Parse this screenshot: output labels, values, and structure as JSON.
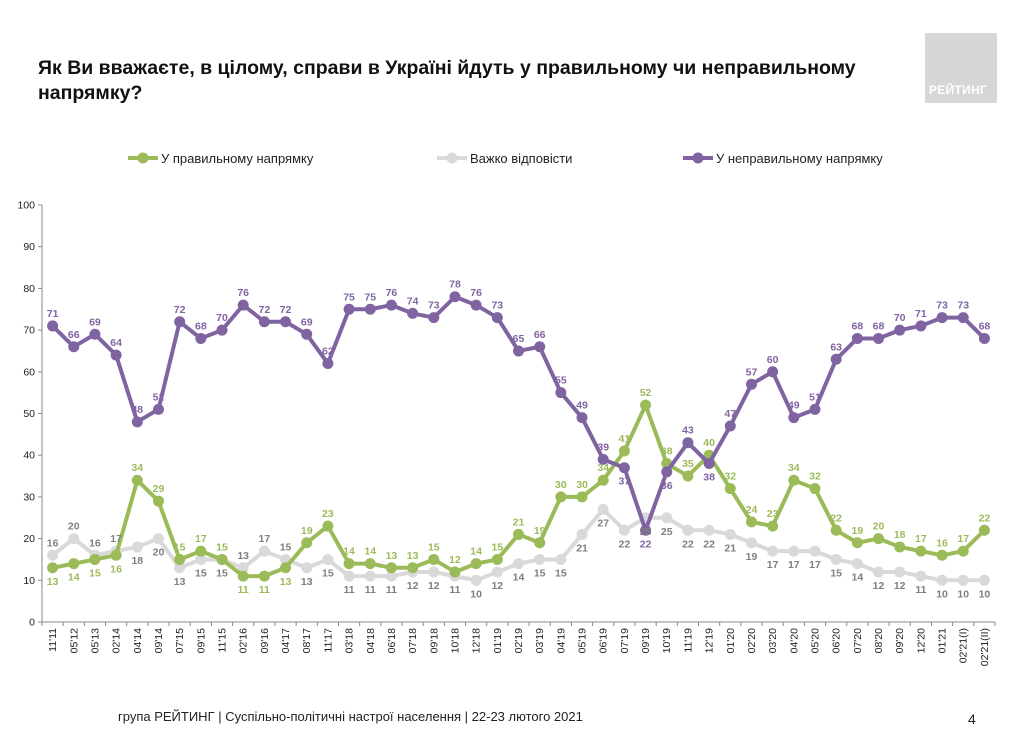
{
  "title": "Як Ви вважаєте, в цілому, справи в Україні йдуть у правильному чи неправильному напрямку?",
  "logo_text": "РЕЙТИНГ",
  "footer": "група РЕЙТИНГ | Суспільно-політичні настрої населення  | 22-23 лютого 2021",
  "page_number": "4",
  "chart_data": {
    "type": "line",
    "ylim": [
      0,
      100
    ],
    "yticks": [
      0,
      10,
      20,
      30,
      40,
      50,
      60,
      70,
      80,
      90,
      100
    ],
    "legend_position": "top",
    "grid": false,
    "categories": [
      "11'11",
      "05'12",
      "05'13",
      "02'14",
      "04'14",
      "09'14",
      "07'15",
      "09'15",
      "11'15",
      "02'16",
      "09'16",
      "04'17",
      "08'17",
      "11'17",
      "03'18",
      "04'18",
      "06'18",
      "07'18",
      "09'18",
      "10'18",
      "12'18",
      "01'19",
      "02'19",
      "03'19",
      "04'19",
      "05'19",
      "06'19",
      "07'19",
      "09'19",
      "10'19",
      "11'19",
      "12'19",
      "01'20",
      "02'20",
      "03'20",
      "04'20",
      "05'20",
      "06'20",
      "07'20",
      "08'20",
      "09'20",
      "12'20",
      "01'21",
      "02'21(I)",
      "02'21(II)"
    ],
    "series": [
      {
        "name": "У правильному напрямку",
        "color": "#9bbb59",
        "values": [
          13,
          14,
          15,
          16,
          34,
          29,
          15,
          17,
          15,
          11,
          11,
          13,
          19,
          23,
          14,
          14,
          13,
          13,
          15,
          12,
          14,
          15,
          21,
          19,
          30,
          30,
          34,
          41,
          52,
          38,
          35,
          40,
          32,
          24,
          23,
          34,
          32,
          22,
          19,
          20,
          18,
          17,
          16,
          17,
          22
        ]
      },
      {
        "name": "Важко відповісти",
        "color": "#d9d9d9",
        "values": [
          16,
          20,
          16,
          17,
          18,
          20,
          13,
          15,
          15,
          13,
          17,
          15,
          13,
          15,
          11,
          11,
          11,
          12,
          12,
          11,
          10,
          12,
          14,
          15,
          15,
          21,
          27,
          22,
          25,
          25,
          22,
          22,
          21,
          19,
          17,
          17,
          17,
          15,
          14,
          12,
          12,
          11,
          10,
          10,
          10
        ]
      },
      {
        "name": "У неправильному напрямку",
        "color": "#8064a2",
        "values": [
          71,
          66,
          69,
          64,
          48,
          51,
          72,
          68,
          70,
          76,
          72,
          72,
          69,
          62,
          75,
          75,
          76,
          74,
          73,
          78,
          76,
          73,
          65,
          66,
          55,
          49,
          39,
          37,
          22,
          36,
          43,
          38,
          47,
          57,
          60,
          49,
          51,
          63,
          68,
          68,
          70,
          71,
          73,
          73,
          68
        ]
      }
    ]
  }
}
